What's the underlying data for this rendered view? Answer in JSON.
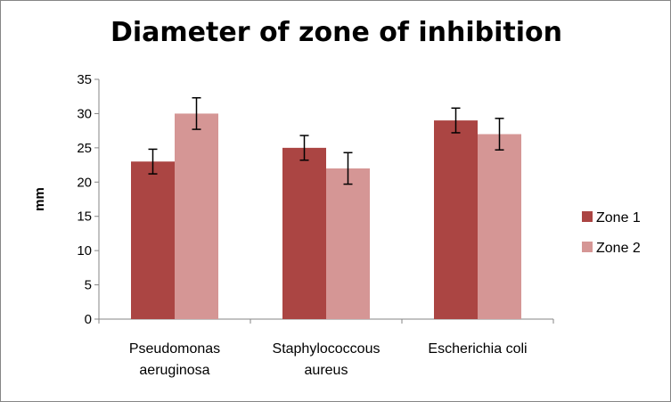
{
  "chart_data": {
    "type": "bar",
    "title": "Diameter of zone of inhibition",
    "xlabel": "",
    "ylabel": "mm",
    "ylim": [
      0,
      35
    ],
    "yticks": [
      "0",
      "5",
      "10",
      "15",
      "20",
      "25",
      "30",
      "35"
    ],
    "categories": [
      [
        "Pseudomonas",
        "aeruginosa"
      ],
      [
        "Staphylococcous",
        "aureus"
      ],
      [
        "Escherichia coli"
      ]
    ],
    "series": [
      {
        "name": "Zone  1",
        "color": "#ab4543",
        "values": [
          23,
          25,
          29
        ],
        "errors": [
          1.8,
          1.8,
          1.8
        ]
      },
      {
        "name": "Zone  2",
        "color": "#d59695",
        "values": [
          30,
          22,
          27
        ],
        "errors": [
          2.3,
          2.3,
          2.3
        ]
      }
    ],
    "grid": false,
    "error_bars": true,
    "legend_position": "right"
  }
}
